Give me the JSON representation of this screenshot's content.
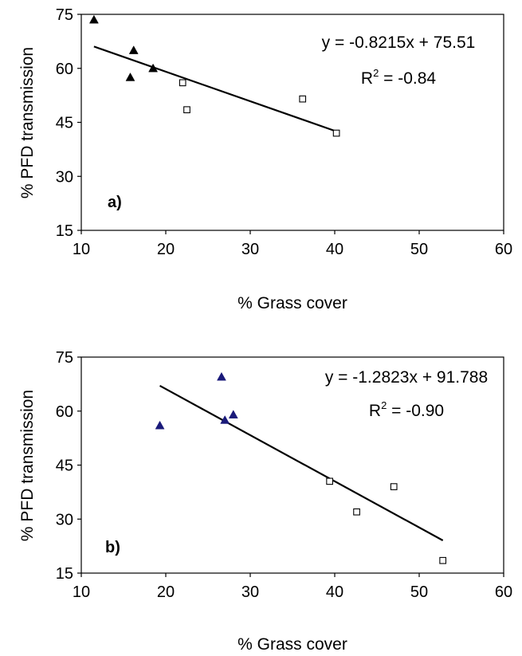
{
  "chart_data": [
    {
      "type": "scatter",
      "panel_label": "a)",
      "xlabel": "% Grass cover",
      "ylabel": "% PFD transmission",
      "xlim": [
        10,
        60
      ],
      "ylim": [
        15,
        75
      ],
      "xticks": [
        "10",
        "20",
        "30",
        "40",
        "50",
        "60"
      ],
      "yticks": [
        "15",
        "30",
        "45",
        "60",
        "75"
      ],
      "grid": false,
      "equation": "y = -0.8215x + 75.51",
      "r2_prefix": "R",
      "r2_exp": "2",
      "r2_value": " = -0.84",
      "series": [
        {
          "marker": "triangle",
          "color": "#000000",
          "points": [
            [
              11.5,
              73.5
            ],
            [
              16.2,
              65.0
            ],
            [
              15.8,
              57.5
            ],
            [
              18.5,
              60.0
            ]
          ]
        },
        {
          "marker": "square-open",
          "color": "#000000",
          "points": [
            [
              22.0,
              56.0
            ],
            [
              22.5,
              48.5
            ],
            [
              36.2,
              51.5
            ],
            [
              40.2,
              42.0
            ]
          ]
        }
      ],
      "trendline": {
        "slope": -0.8215,
        "intercept": 75.51,
        "x_range": [
          11.5,
          40.2
        ]
      }
    },
    {
      "type": "scatter",
      "panel_label": "b)",
      "xlabel": "% Grass cover",
      "ylabel": "% PFD transmission",
      "xlim": [
        10,
        60
      ],
      "ylim": [
        15,
        75
      ],
      "xticks": [
        "10",
        "20",
        "30",
        "40",
        "50",
        "60"
      ],
      "yticks": [
        "15",
        "30",
        "45",
        "60",
        "75"
      ],
      "grid": false,
      "equation": "y = -1.2823x + 91.788",
      "r2_prefix": "R",
      "r2_exp": "2",
      "r2_value": " = -0.90",
      "series": [
        {
          "marker": "triangle",
          "color": "#1a1a7a",
          "points": [
            [
              19.3,
              56.0
            ],
            [
              26.6,
              69.5
            ],
            [
              27.0,
              57.5
            ],
            [
              28.0,
              59.0
            ]
          ]
        },
        {
          "marker": "square-open",
          "color": "#000000",
          "points": [
            [
              39.4,
              40.5
            ],
            [
              42.6,
              32.0
            ],
            [
              47.0,
              39.0
            ],
            [
              52.8,
              18.5
            ]
          ]
        }
      ],
      "trendline": {
        "slope": -1.2823,
        "intercept": 91.788,
        "x_range": [
          19.3,
          52.8
        ]
      }
    }
  ]
}
